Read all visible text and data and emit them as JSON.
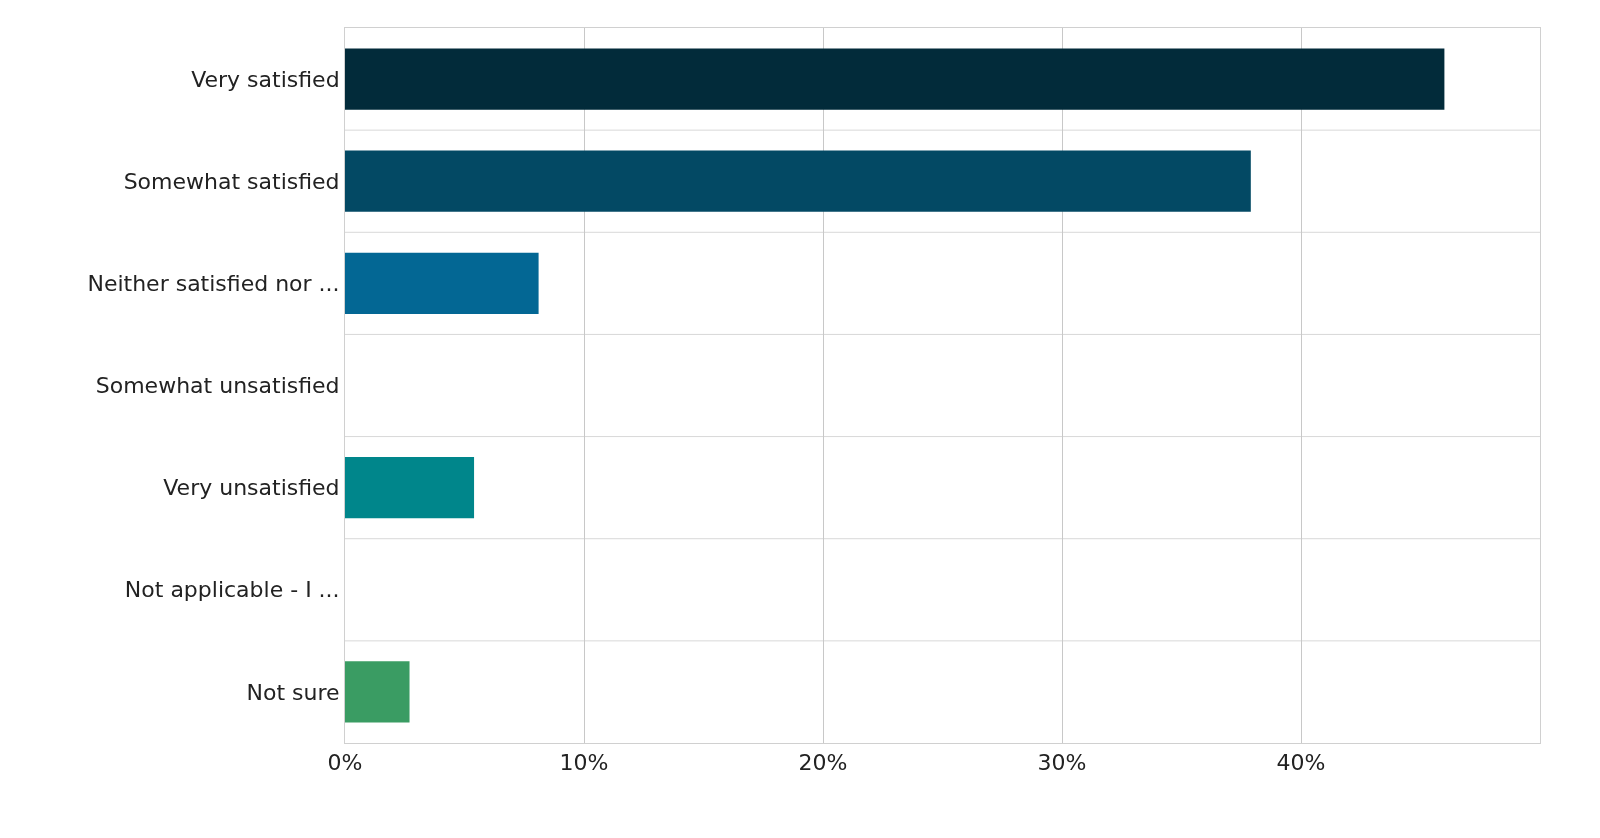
{
  "chart_data": {
    "type": "bar",
    "orientation": "horizontal",
    "categories": [
      "Very satisfied",
      "Somewhat satisfied",
      "Neither satisfied nor ...",
      "Somewhat unsatisfied",
      "Very unsatisfied",
      "Not applicable - I ...",
      "Not sure"
    ],
    "values": [
      46.0,
      37.9,
      8.1,
      0,
      5.4,
      0,
      2.7
    ],
    "colors": [
      "#022b3a",
      "#034964",
      "#036794",
      "#04768f",
      "#00868b",
      "#1f9278",
      "#3a9c63"
    ],
    "xlim": [
      0,
      50
    ],
    "xticks": [
      {
        "value": 0,
        "label": "0%"
      },
      {
        "value": 10,
        "label": "10%"
      },
      {
        "value": 20,
        "label": "20%"
      },
      {
        "value": 30,
        "label": "30%"
      },
      {
        "value": 40,
        "label": "40%"
      },
      {
        "value": 50,
        "label": null
      }
    ],
    "grid": true,
    "legend": false
  }
}
